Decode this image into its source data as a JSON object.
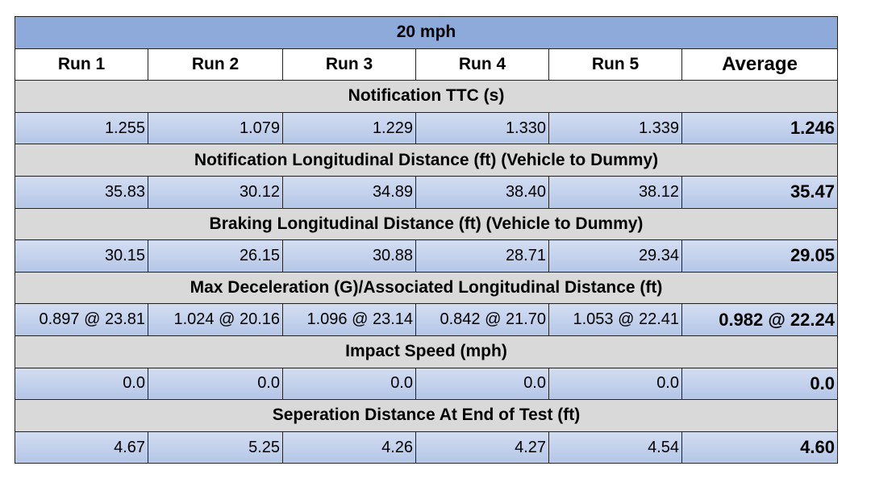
{
  "table": {
    "title": "20 mph",
    "header": [
      "Run 1",
      "Run 2",
      "Run 3",
      "Run 4",
      "Run 5",
      "Average"
    ],
    "sections": [
      {
        "label": "Notification TTC (s)",
        "values": [
          "1.255",
          "1.079",
          "1.229",
          "1.330",
          "1.339",
          "1.246"
        ]
      },
      {
        "label": "Notification Longitudinal Distance (ft) (Vehicle to Dummy)",
        "values": [
          "35.83",
          "30.12",
          "34.89",
          "38.40",
          "38.12",
          "35.47"
        ]
      },
      {
        "label": "Braking Longitudinal Distance (ft) (Vehicle to Dummy)",
        "values": [
          "30.15",
          "26.15",
          "30.88",
          "28.71",
          "29.34",
          "29.05"
        ]
      },
      {
        "label": "Max Deceleration (G)/Associated Longitudinal Distance (ft)",
        "values": [
          "0.897 @ 23.81",
          "1.024 @ 20.16",
          "1.096 @ 23.14",
          "0.842 @ 21.70",
          "1.053 @ 22.41",
          "0.982 @ 22.24"
        ]
      },
      {
        "label": "Impact Speed (mph)",
        "values": [
          "0.0",
          "0.0",
          "0.0",
          "0.0",
          "0.0",
          "0.0"
        ]
      },
      {
        "label": "Seperation Distance At End of Test (ft)",
        "values": [
          "4.67",
          "5.25",
          "4.26",
          "4.27",
          "4.54",
          "4.60"
        ]
      }
    ]
  }
}
